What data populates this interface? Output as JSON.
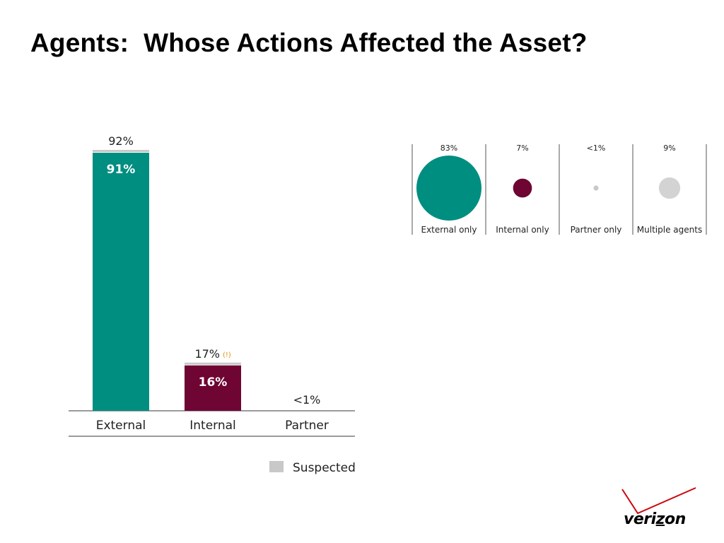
{
  "slide": {
    "title": "Agents:  Whose Actions Affected the Asset?"
  },
  "colors": {
    "external": "#008e80",
    "internal": "#6e0532",
    "suspected": "#c8c8c8",
    "logo_check": "#cd040b"
  },
  "chart_data": [
    {
      "type": "bar",
      "categories": [
        "External",
        "Internal",
        "Partner"
      ],
      "series": [
        {
          "name": "",
          "values": [
            91,
            16,
            0
          ]
        },
        {
          "name": "Suspected",
          "values": [
            1,
            1,
            0
          ]
        }
      ],
      "inner_labels": [
        "91%",
        "16%",
        ""
      ],
      "total_labels": [
        "92%",
        "17%",
        "<1%"
      ],
      "annotations": [
        {
          "category": "Internal",
          "text": "(!)"
        }
      ],
      "ylim": [
        0,
        92
      ],
      "legend": {
        "entries": [
          "Suspected"
        ],
        "placement": "bottom-right"
      }
    },
    {
      "type": "bubble",
      "categories": [
        "External only",
        "Internal only",
        "Partner only",
        "Multiple agents"
      ],
      "values": [
        83,
        7,
        0.5,
        9
      ],
      "labels": [
        "83%",
        "7%",
        "<1%",
        "9%"
      ],
      "colors": [
        "#008e80",
        "#6e0532",
        "#c8c8c8",
        "#d3d3d3"
      ]
    }
  ],
  "logo": {
    "text": "verizon"
  }
}
